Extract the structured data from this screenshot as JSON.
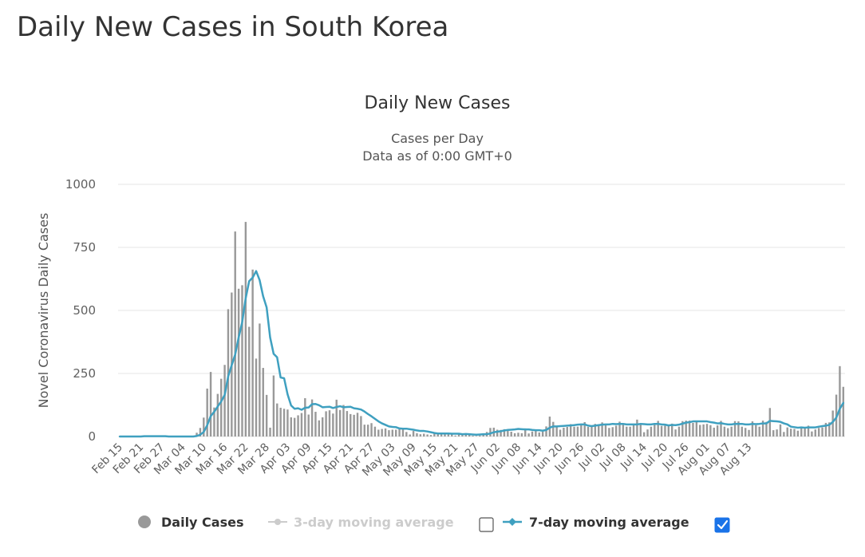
{
  "page": {
    "title": "Daily New Cases in South Korea"
  },
  "legend": {
    "daily_cases": "Daily Cases",
    "avg3": "3-day moving average",
    "avg7": "7-day moving average",
    "avg3_checked": false,
    "avg7_checked": true
  },
  "colors": {
    "bars": "#999999",
    "avg7": "#3fa0c0",
    "avg3_disabled": "#cccccc",
    "grid": "#e6e6e6",
    "checkbox_checked": "#1a73e8"
  },
  "chart_data": {
    "type": "bar",
    "title": "Daily New Cases",
    "subtitle": [
      "Cases per Day",
      "Data as of 0:00 GMT+0"
    ],
    "ylabel": "Novel Coronavirus Daily Cases",
    "xlabel": "",
    "ylim": [
      0,
      1000
    ],
    "yticks": [
      "0",
      "250",
      "500",
      "750",
      "1000"
    ],
    "grid": true,
    "legend_position": "bottom",
    "xtick_labels": [
      "Feb 15",
      "Feb 21",
      "Feb 27",
      "Mar 04",
      "Mar 10",
      "Mar 16",
      "Mar 22",
      "Mar 28",
      "Apr 03",
      "Apr 09",
      "Apr 15",
      "Apr 21",
      "Apr 27",
      "May 03",
      "May 09",
      "May 15",
      "May 21",
      "May 27",
      "Jun 02",
      "Jun 08",
      "Jun 14",
      "Jun 20",
      "Jun 26",
      "Jul 02",
      "Jul 08",
      "Jul 14",
      "Jul 20",
      "Jul 26",
      "Aug 01",
      "Aug 07",
      "Aug 13"
    ],
    "x_start": "Feb 15",
    "x_end": "Aug 16",
    "series": [
      {
        "name": "Daily Cases",
        "type": "bar",
        "values": [
          0,
          0,
          0,
          0,
          1,
          1,
          1,
          2,
          1,
          0,
          2,
          0,
          0,
          0,
          0,
          0,
          0,
          0,
          0,
          0,
          1,
          0,
          15,
          34,
          75,
          190,
          256,
          115,
          169,
          229,
          284,
          505,
          571,
          813,
          586,
          600,
          851,
          435,
          662,
          309,
          448,
          272,
          165,
          35,
          242,
          131,
          114,
          110,
          107,
          76,
          74,
          84,
          93,
          152,
          87,
          147,
          98,
          64,
          76,
          100,
          104,
          91,
          146,
          105,
          125,
          101,
          89,
          86,
          94,
          81,
          47,
          47,
          53,
          39,
          27,
          30,
          32,
          25,
          27,
          27,
          30,
          32,
          18,
          8,
          22,
          13,
          9,
          11,
          8,
          6,
          13,
          8,
          10,
          10,
          14,
          9,
          4,
          9,
          6,
          13,
          8,
          3,
          2,
          4,
          12,
          18,
          34,
          35,
          27,
          26,
          29,
          27,
          19,
          13,
          15,
          13,
          32,
          12,
          20,
          23,
          16,
          19,
          40,
          79,
          58,
          39,
          27,
          35,
          38,
          49,
          39,
          39,
          51,
          57,
          38,
          38,
          50,
          45,
          56,
          48,
          34,
          37,
          43,
          59,
          49,
          39,
          39,
          51,
          67,
          48,
          17,
          28,
          39,
          51,
          62,
          42,
          43,
          43,
          51,
          28,
          39,
          61,
          63,
          63,
          54,
          61,
          46,
          48,
          50,
          45,
          35,
          44,
          62,
          39,
          33,
          39,
          61,
          60,
          39,
          34,
          26,
          60,
          45,
          39,
          63,
          58,
          113,
          25,
          28,
          48,
          18,
          36,
          31,
          30,
          23,
          34,
          33,
          43,
          20,
          28,
          34,
          36,
          54,
          56,
          103,
          166,
          279,
          197
        ]
      },
      {
        "name": "7-day moving average",
        "type": "line",
        "values": [
          0,
          0,
          0,
          0,
          0,
          0,
          0,
          1,
          1,
          1,
          1,
          1,
          1,
          1,
          0,
          0,
          0,
          0,
          0,
          0,
          0,
          0,
          2,
          7,
          18,
          45,
          81,
          98,
          119,
          139,
          165,
          238,
          283,
          325,
          393,
          453,
          548,
          616,
          630,
          656,
          620,
          556,
          512,
          393,
          328,
          314,
          234,
          231,
          167,
          123,
          110,
          112,
          106,
          114,
          115,
          128,
          129,
          124,
          116,
          117,
          118,
          113,
          117,
          120,
          116,
          117,
          118,
          112,
          110,
          107,
          99,
          89,
          80,
          70,
          60,
          52,
          46,
          40,
          38,
          37,
          32,
          31,
          31,
          29,
          27,
          24,
          22,
          22,
          20,
          17,
          14,
          12,
          12,
          12,
          12,
          11,
          11,
          11,
          9,
          10,
          9,
          8,
          7,
          8,
          9,
          9,
          12,
          17,
          19,
          21,
          24,
          26,
          27,
          28,
          30,
          29,
          28,
          28,
          26,
          25,
          25,
          23,
          26,
          35,
          40,
          40,
          41,
          42,
          43,
          44,
          45,
          47,
          48,
          48,
          43,
          41,
          43,
          45,
          47,
          48,
          48,
          50,
          49,
          50,
          50,
          48,
          48,
          48,
          48,
          50,
          49,
          48,
          48,
          50,
          50,
          48,
          47,
          44,
          46,
          45,
          47,
          51,
          55,
          57,
          60,
          60,
          60,
          60,
          60,
          57,
          55,
          52,
          53,
          50,
          48,
          48,
          50,
          50,
          50,
          48,
          48,
          50,
          49,
          50,
          52,
          52,
          62,
          61,
          60,
          58,
          52,
          48,
          39,
          37,
          35,
          36,
          35,
          36,
          36,
          36,
          39,
          41,
          43,
          46,
          58,
          75,
          110,
          133
        ]
      }
    ]
  }
}
